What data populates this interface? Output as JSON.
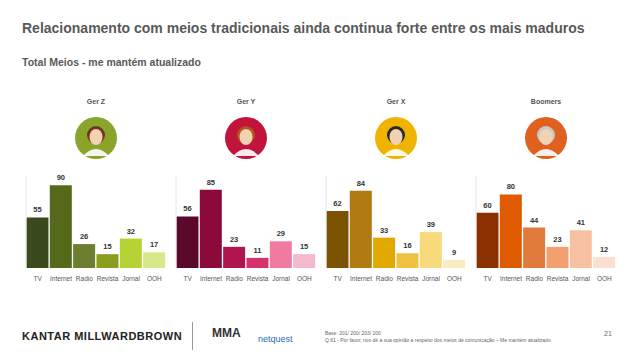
{
  "title": "Relacionamento com meios tradicionais ainda continua forte entre os mais maduros",
  "subtitle": "Total Meios - me mantém atualizado",
  "chart_data": [
    {
      "type": "bar",
      "title": "Ger Z",
      "categories": [
        "TV",
        "Internet",
        "Radio",
        "Revista",
        "Jornal",
        "OOH"
      ],
      "values": [
        55,
        90,
        26,
        15,
        32,
        17
      ],
      "colors": [
        "#3b4a1c",
        "#55691a",
        "#6b7f2e",
        "#8c9c1c",
        "#b5d334",
        "#d6e88a"
      ],
      "ylim": [
        0,
        100
      ],
      "data_labels": true,
      "tick_labels": "x"
    },
    {
      "type": "bar",
      "title": "Ger Y",
      "categories": [
        "TV",
        "Internet",
        "Radio",
        "Revista",
        "Jornal",
        "OOH"
      ],
      "values": [
        56,
        85,
        23,
        11,
        29,
        15
      ],
      "colors": [
        "#5a0a28",
        "#8b0a3a",
        "#b0154e",
        "#d6336c",
        "#f07aa0",
        "#f5b8cc"
      ],
      "ylim": [
        0,
        100
      ],
      "data_labels": true,
      "tick_labels": "x"
    },
    {
      "type": "bar",
      "title": "Ger X",
      "categories": [
        "TV",
        "Internet",
        "Radio",
        "Revista",
        "Jornal",
        "OOH"
      ],
      "values": [
        62,
        84,
        33,
        16,
        39,
        9
      ],
      "colors": [
        "#7a5200",
        "#b07a10",
        "#e0a800",
        "#f0c040",
        "#f5d97a",
        "#f9ecc0"
      ],
      "ylim": [
        0,
        100
      ],
      "data_labels": true,
      "tick_labels": "x"
    },
    {
      "type": "bar",
      "title": "Boomers",
      "categories": [
        "TV",
        "Internet",
        "Radio",
        "Revista",
        "Jornal",
        "OOH"
      ],
      "values": [
        60,
        80,
        44,
        23,
        41,
        12
      ],
      "colors": [
        "#8b3000",
        "#e05a00",
        "#e07a3a",
        "#f2a070",
        "#f7c0a0",
        "#fae0d0"
      ],
      "ylim": [
        0,
        100
      ],
      "data_labels": true,
      "tick_labels": "x"
    }
  ],
  "footer": {
    "logo": "KANTAR MILLWARDBROWN",
    "partners": [
      "MMA",
      "netquest"
    ],
    "base": "Base: 201/ 200/ 203/ 200",
    "question": "Q.61 - Por favor, nos dê a sua opinião a respeito dos meios de comunicação – Me mantém atualizado",
    "page": "21"
  }
}
